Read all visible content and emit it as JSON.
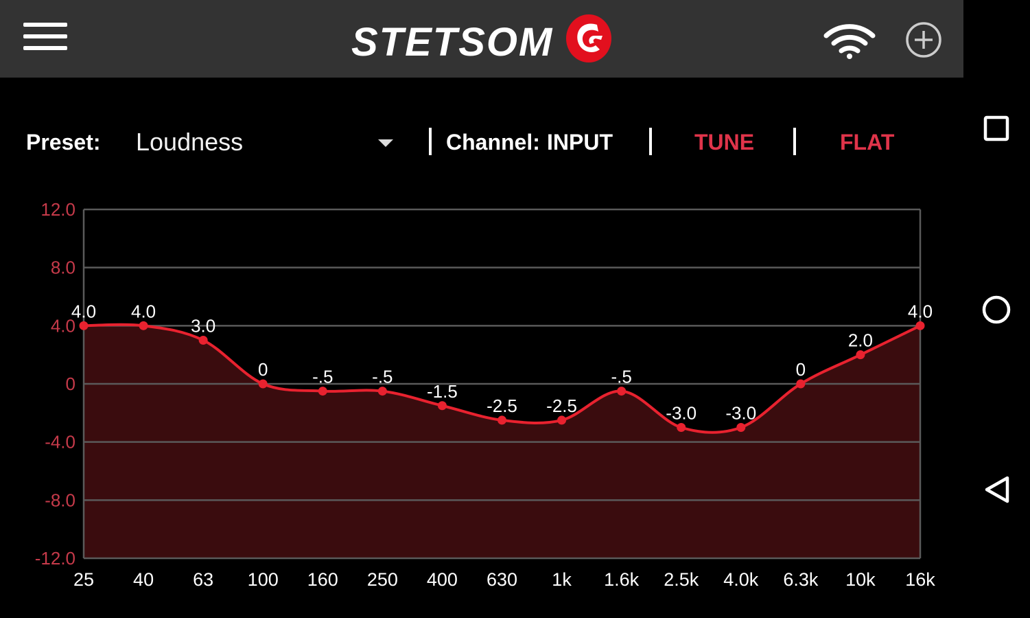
{
  "header": {
    "brand": "STETSOM",
    "icons": [
      "menu-icon",
      "wifi-icon",
      "add-circle-icon"
    ]
  },
  "toolbar": {
    "preset_label": "Preset:",
    "preset_value": "Loudness",
    "channel_label": "Channel:",
    "channel_value": "INPUT",
    "tune_label": "TUNE",
    "flat_label": "FLAT"
  },
  "navigation": [
    "square-icon",
    "circle-icon",
    "back-triangle-icon"
  ],
  "colors": {
    "accent": "#e0344a",
    "curve": "#e8222f",
    "fill": "#3a0c0e",
    "topbar": "#333333"
  },
  "chart_data": {
    "type": "area",
    "categories": [
      "25",
      "40",
      "63",
      "100",
      "160",
      "250",
      "400",
      "630",
      "1k",
      "1.6k",
      "2.5k",
      "4.0k",
      "6.3k",
      "10k",
      "16k"
    ],
    "values": [
      4.0,
      4.0,
      3.0,
      0,
      -0.5,
      -0.5,
      -1.5,
      -2.5,
      -2.5,
      -0.5,
      -3.0,
      -3.0,
      0,
      2.0,
      4.0
    ],
    "value_labels": [
      "4.0",
      "4.0",
      "3.0",
      "0",
      "-.5",
      "-.5",
      "-1.5",
      "-2.5",
      "-2.5",
      "-.5",
      "-3.0",
      "-3.0",
      "0",
      "2.0",
      "4.0"
    ],
    "y_ticks": [
      "12.0",
      "8.0",
      "4.0",
      "0",
      "-4.0",
      "-8.0",
      "-12.0"
    ],
    "ylim": [
      -12,
      12
    ],
    "grid": true
  }
}
